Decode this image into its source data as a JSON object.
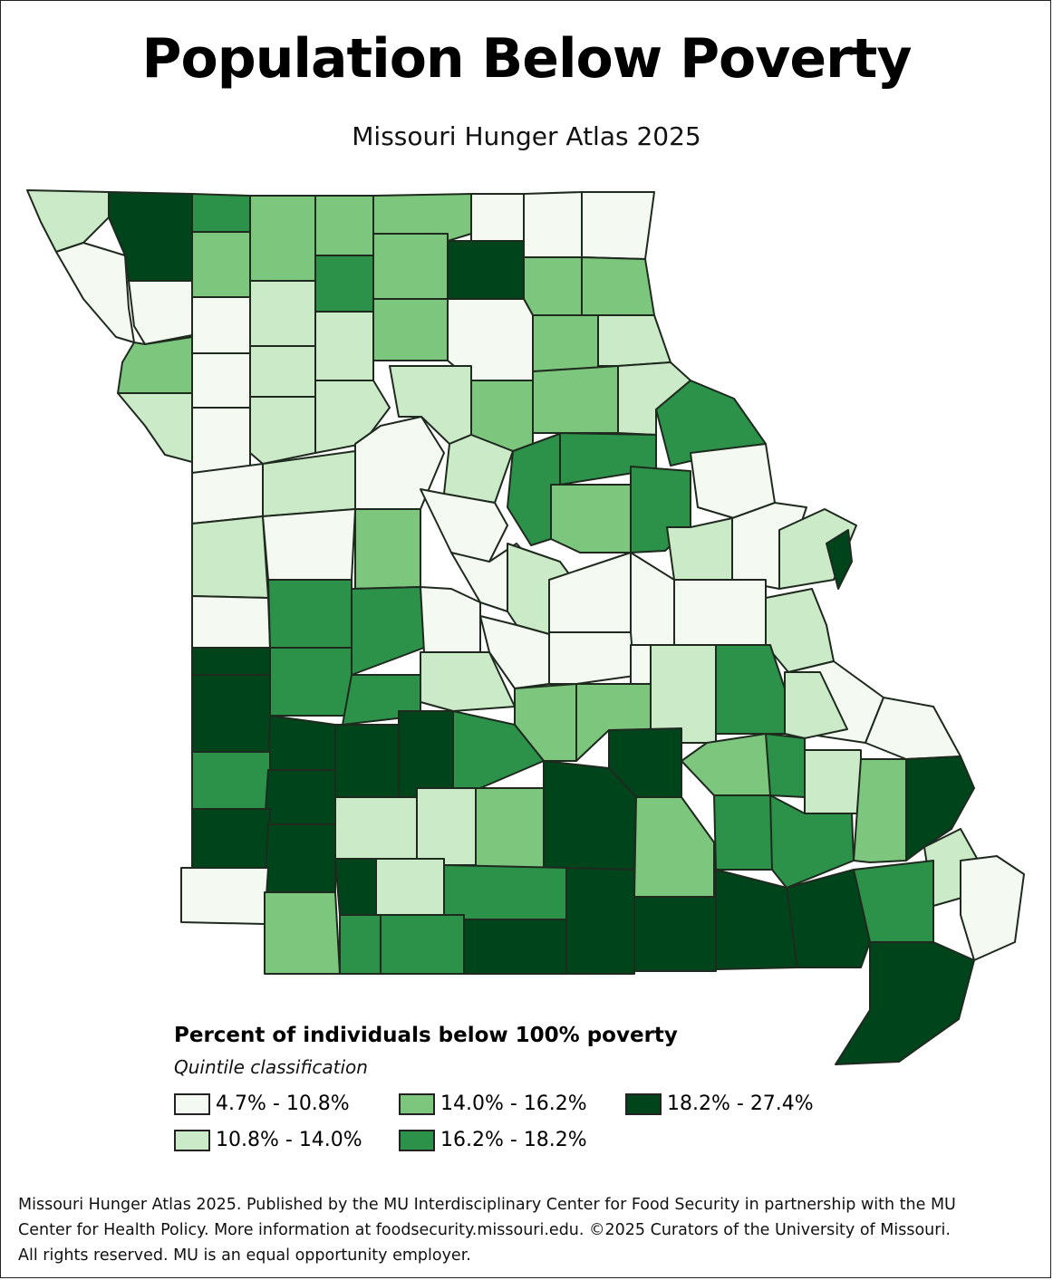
{
  "header": {
    "title": "Population Below Poverty",
    "subtitle": "Missouri Hunger Atlas 2025"
  },
  "legend": {
    "title": "Percent of individuals below 100% poverty",
    "subtitle": "Quintile classification",
    "classes": [
      {
        "label": "4.7% - 10.8%",
        "color": "#f4faf1"
      },
      {
        "label": "10.8% - 14.0%",
        "color": "#cbeac7"
      },
      {
        "label": "14.0% - 16.2%",
        "color": "#7dc67e"
      },
      {
        "label": "16.2% - 18.2%",
        "color": "#2c9149"
      },
      {
        "label": "18.2% - 27.4%",
        "color": "#00441c"
      }
    ]
  },
  "footer": {
    "line1": "Missouri Hunger Atlas 2025. Published by the MU Interdisciplinary Center for Food Security in partnership with the MU",
    "line2": "Center for Health Policy. More information at foodsecurity.missouri.edu. ©2025 Curators of the University of Missouri.",
    "line3": "All rights reserved. MU is an equal opportunity employer."
  },
  "map": {
    "state": "Missouri",
    "counties": [
      {
        "c": 1
      },
      {
        "c": 4
      },
      {
        "c": 3
      },
      {
        "c": 2
      },
      {
        "c": 2
      },
      {
        "c": 2
      },
      {
        "c": 0
      },
      {
        "c": 0
      },
      {
        "c": 0
      },
      {
        "c": 0
      },
      {
        "c": 0
      },
      {
        "c": 2
      },
      {
        "c": 1
      },
      {
        "c": 3
      },
      {
        "c": 2
      },
      {
        "c": 4
      },
      {
        "c": 2
      },
      {
        "c": 2
      },
      {
        "c": 0
      },
      {
        "c": 2
      },
      {
        "c": 0
      },
      {
        "c": 1
      },
      {
        "c": 1
      },
      {
        "c": 2
      },
      {
        "c": 0
      },
      {
        "c": 2
      },
      {
        "c": 1
      },
      {
        "c": 1
      },
      {
        "c": 0
      },
      {
        "c": 1
      },
      {
        "c": 1
      },
      {
        "c": 1
      },
      {
        "c": 2
      },
      {
        "c": 2
      },
      {
        "c": 1
      },
      {
        "c": 3
      },
      {
        "c": 0
      },
      {
        "c": 1
      },
      {
        "c": 0
      },
      {
        "c": 1
      },
      {
        "c": 1
      },
      {
        "c": 0
      },
      {
        "c": 3
      },
      {
        "c": 3
      },
      {
        "c": 3
      },
      {
        "c": 0
      },
      {
        "c": 2
      },
      {
        "c": 0
      },
      {
        "c": 2
      },
      {
        "c": 1
      },
      {
        "c": 0
      },
      {
        "c": 1
      },
      {
        "c": 0
      },
      {
        "c": 0
      },
      {
        "c": 1
      },
      {
        "c": 3
      },
      {
        "c": 3
      },
      {
        "c": 0
      },
      {
        "c": 0
      },
      {
        "c": 0
      },
      {
        "c": 1
      },
      {
        "c": 4
      },
      {
        "c": 0
      },
      {
        "c": 0
      },
      {
        "c": 0
      },
      {
        "c": 0
      },
      {
        "c": 0
      },
      {
        "c": 4
      },
      {
        "c": 3
      },
      {
        "c": 3
      },
      {
        "c": 4
      },
      {
        "c": 1
      },
      {
        "c": 2
      },
      {
        "c": 2
      },
      {
        "c": 1
      },
      {
        "c": 3
      },
      {
        "c": 1
      },
      {
        "c": 0
      },
      {
        "c": 4
      },
      {
        "c": 4
      },
      {
        "c": 4
      },
      {
        "c": 3
      },
      {
        "c": 4
      },
      {
        "c": 2
      },
      {
        "c": 3
      },
      {
        "c": 1
      },
      {
        "c": 3
      },
      {
        "c": 4
      },
      {
        "c": 1
      },
      {
        "c": 1
      },
      {
        "c": 2
      },
      {
        "c": 4
      },
      {
        "c": 2
      },
      {
        "c": 3
      },
      {
        "c": 3
      },
      {
        "c": 2
      },
      {
        "c": 4
      },
      {
        "c": 4
      },
      {
        "c": 4
      },
      {
        "c": 4
      },
      {
        "c": 1
      },
      {
        "c": 3
      },
      {
        "c": 1
      },
      {
        "c": 3
      },
      {
        "c": 0
      },
      {
        "c": 0
      },
      {
        "c": 2
      },
      {
        "c": 3
      },
      {
        "c": 3
      },
      {
        "c": 4
      },
      {
        "c": 4
      },
      {
        "c": 4
      },
      {
        "c": 4
      },
      {
        "c": 4
      },
      {
        "c": 4
      }
    ]
  }
}
